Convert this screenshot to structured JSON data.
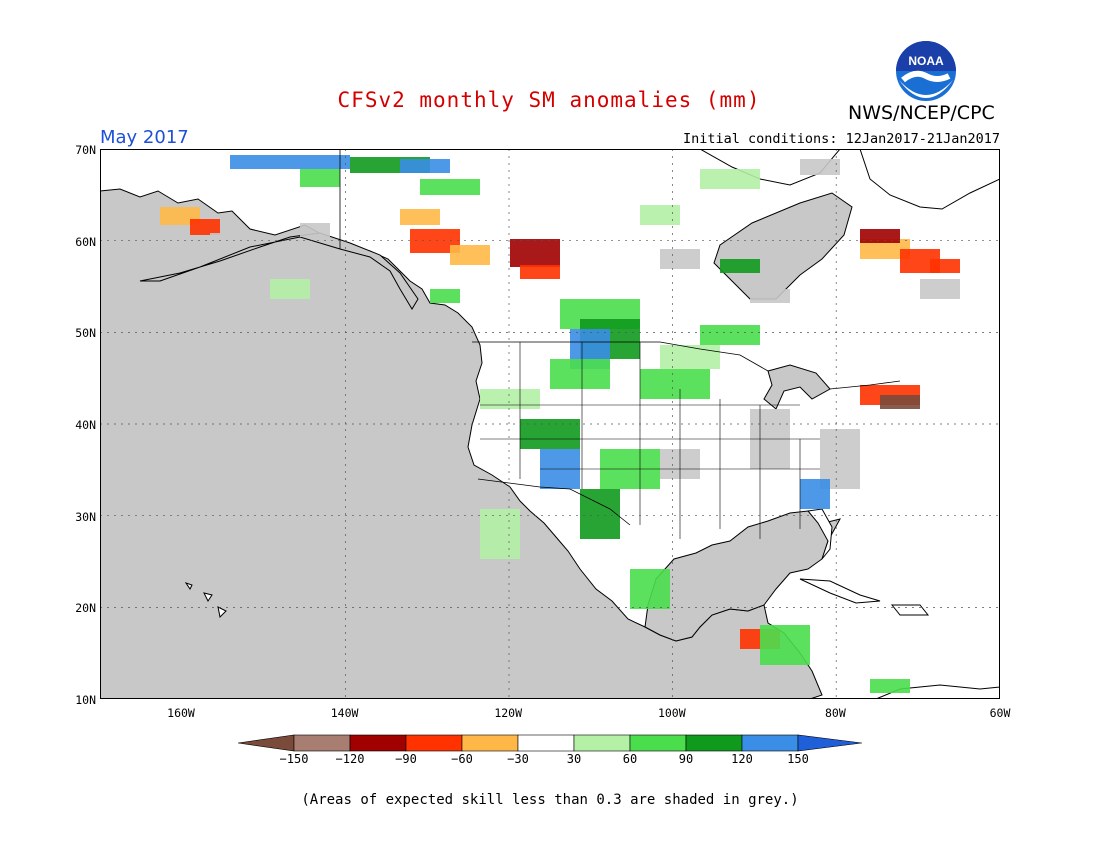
{
  "header": {
    "title": "CFSv2 monthly SM anomalies (mm)",
    "title_color": "#d40000",
    "agency": "NWS/NCEP/CPC",
    "valid_month": "May 2017",
    "valid_color": "#1f4fd8",
    "initial_conditions": "Initial conditions: 12Jan2017-21Jan2017",
    "logo_text": "NOAA"
  },
  "map": {
    "region": "North America",
    "lat_labels": [
      "70N",
      "60N",
      "50N",
      "40N",
      "30N",
      "20N",
      "10N"
    ],
    "lon_labels": [
      "160W",
      "140W",
      "120W",
      "100W",
      "80W",
      "60W"
    ],
    "gridlines": "dotted",
    "land_color": "#ffffff",
    "ocean_color": "#c8c8c8"
  },
  "legend": {
    "tick_labels": [
      "-150",
      "-120",
      "-90",
      "-60",
      "-30",
      "30",
      "60",
      "90",
      "120",
      "150"
    ],
    "colors": [
      "#7a4a3a",
      "#a87e72",
      "#a00000",
      "#ff3200",
      "#ffb847",
      "#ffffff",
      "#b4f0a6",
      "#4ade4c",
      "#0f9a1e",
      "#3a8ee6",
      "#1f5fd8"
    ],
    "classes": [
      {
        "range": "< -150",
        "color": "#7a4a3a"
      },
      {
        "range": "-150 to -120",
        "color": "#a87e72"
      },
      {
        "range": "-120 to -90",
        "color": "#a00000"
      },
      {
        "range": "-90 to -60",
        "color": "#ff3200"
      },
      {
        "range": "-60 to -30",
        "color": "#ffb847"
      },
      {
        "range": "-30 to 30",
        "color": "#ffffff"
      },
      {
        "range": "30 to 60",
        "color": "#b4f0a6"
      },
      {
        "range": "60 to 90",
        "color": "#4ade4c"
      },
      {
        "range": "90 to 120",
        "color": "#0f9a1e"
      },
      {
        "range": "120 to 150",
        "color": "#3a8ee6"
      },
      {
        "range": "> 150",
        "color": "#1f5fd8"
      }
    ]
  },
  "footer": {
    "note": "(Areas of expected skill less than 0.3 are shaded in grey.)"
  }
}
